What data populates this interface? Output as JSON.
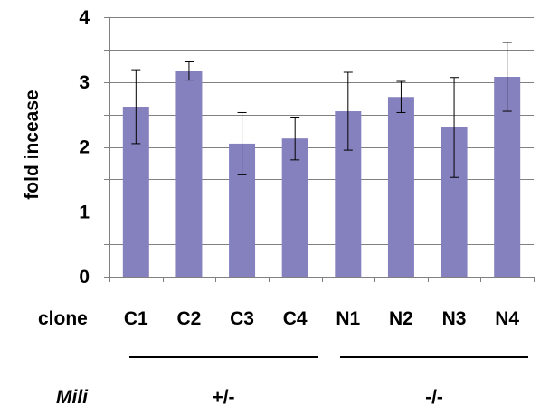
{
  "chart_data": {
    "type": "bar",
    "ylabel": "fold incease",
    "xlabel": "clone",
    "ylim": [
      0,
      4
    ],
    "yticks": [
      "0",
      "1",
      "2",
      "3",
      "4"
    ],
    "categories": [
      "C1",
      "C2",
      "C3",
      "C4",
      "N1",
      "N2",
      "N3",
      "N4"
    ],
    "values": [
      2.62,
      3.17,
      2.05,
      2.13,
      2.55,
      2.77,
      2.3,
      3.08
    ],
    "errors": [
      0.57,
      0.14,
      0.48,
      0.33,
      0.6,
      0.24,
      0.77,
      0.53
    ],
    "bar_color": "#8581be",
    "grid": "horizontal",
    "groups": [
      {
        "label_row": "Mili",
        "label": "+/-",
        "categories": [
          "C1",
          "C2",
          "C3",
          "C4"
        ]
      },
      {
        "label_row": "Mili",
        "label": "-/-",
        "categories": [
          "N1",
          "N2",
          "N3",
          "N4"
        ]
      }
    ]
  },
  "row_label": "Mili",
  "group_labels": [
    "+/-",
    "-/-"
  ]
}
